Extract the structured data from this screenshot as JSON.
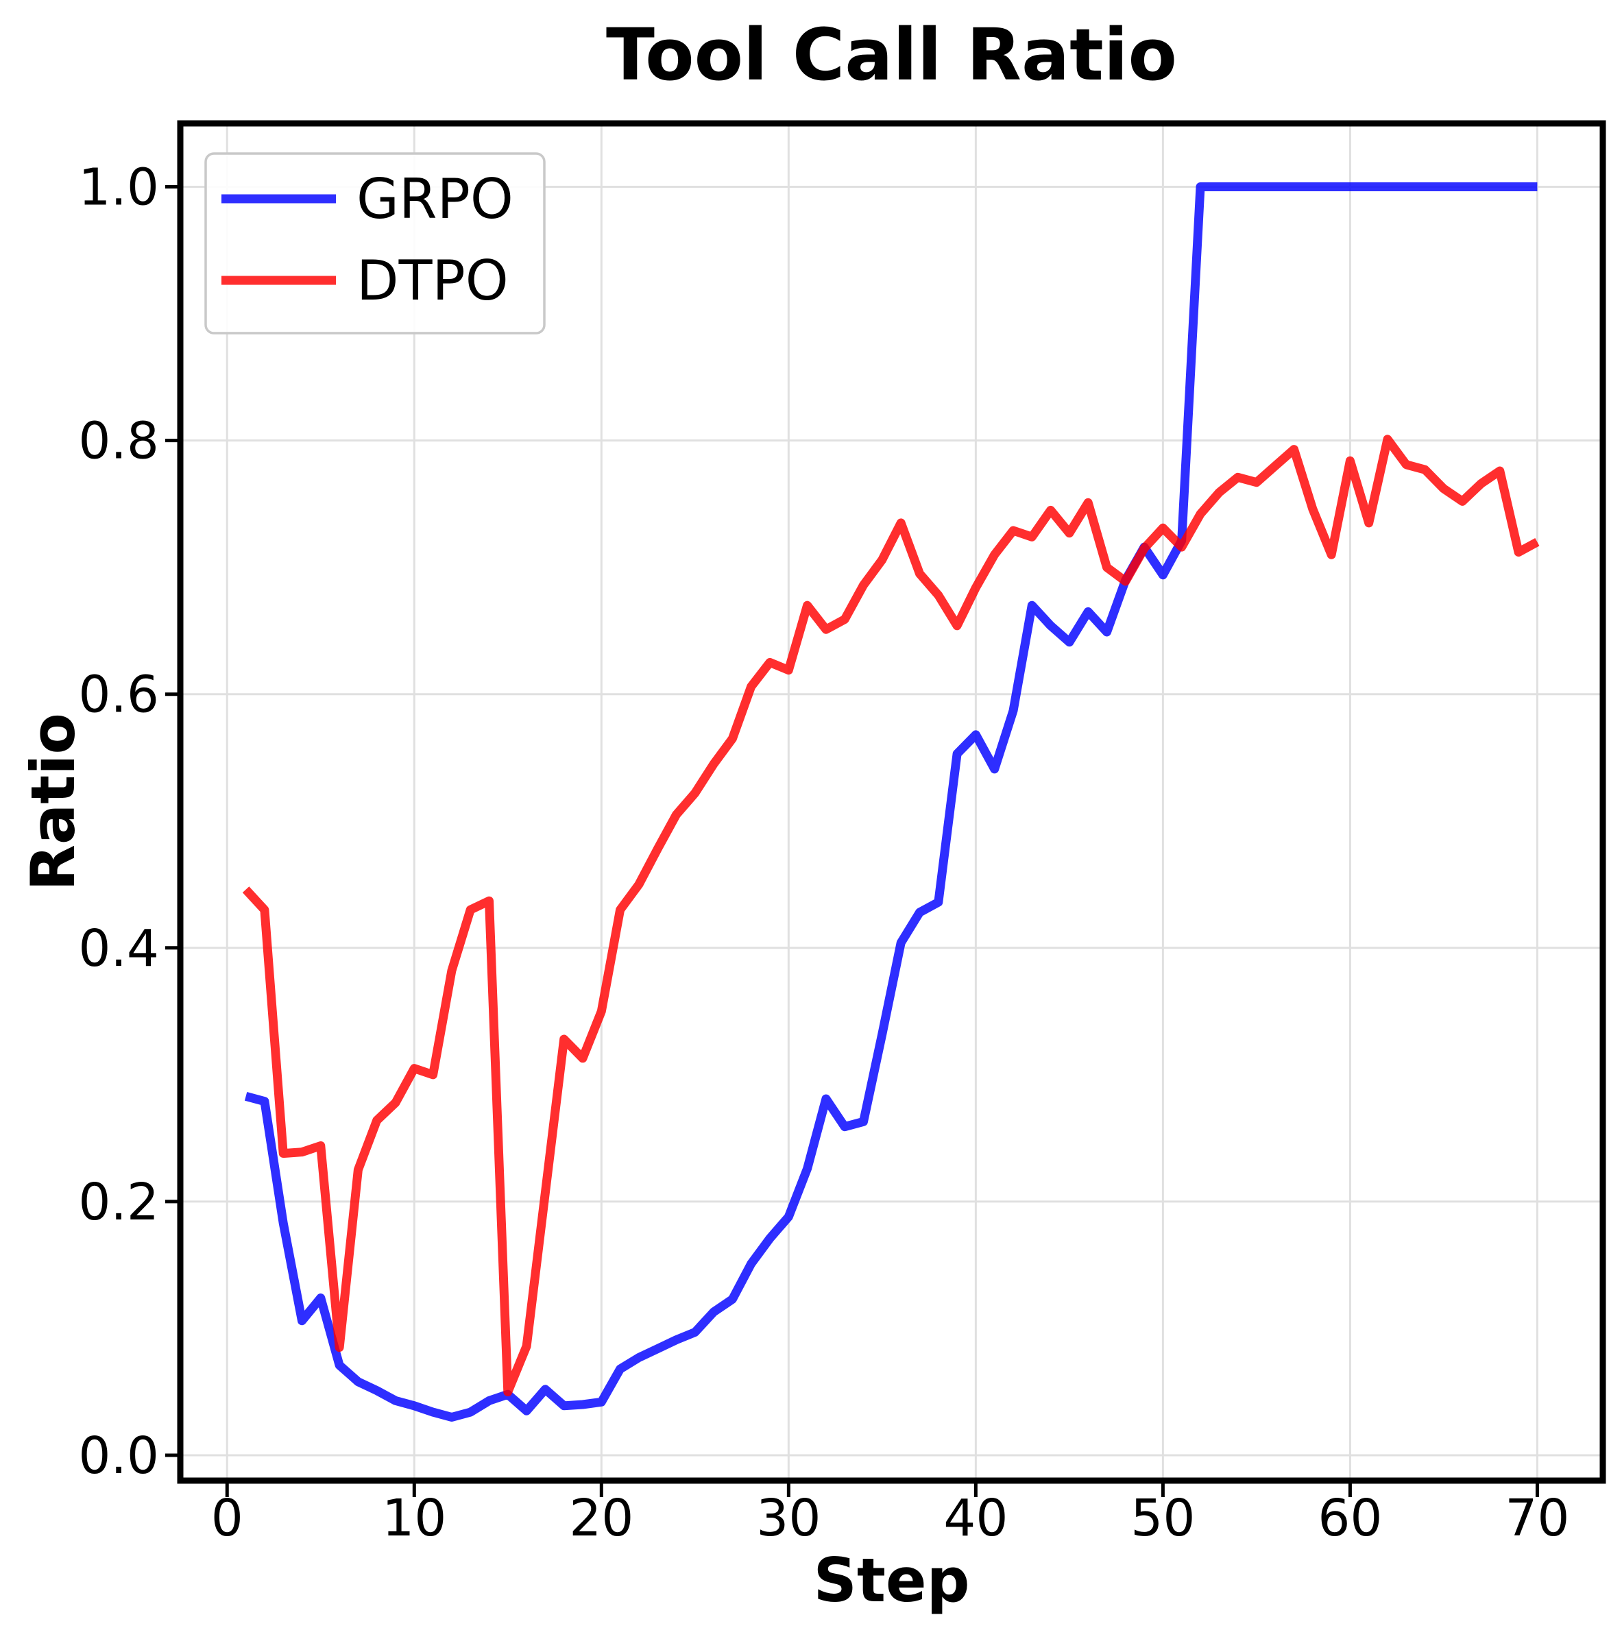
{
  "chart_data": {
    "type": "line",
    "title": "Tool Call Ratio",
    "xlabel": "Step",
    "ylabel": "Ratio",
    "x": [
      1,
      2,
      3,
      4,
      5,
      6,
      7,
      8,
      9,
      10,
      11,
      12,
      13,
      14,
      15,
      16,
      17,
      18,
      19,
      20,
      21,
      22,
      23,
      24,
      25,
      26,
      27,
      28,
      29,
      30,
      31,
      32,
      33,
      34,
      35,
      36,
      37,
      38,
      39,
      40,
      41,
      42,
      43,
      44,
      45,
      46,
      47,
      48,
      49,
      50,
      51,
      52,
      53,
      54,
      55,
      56,
      57,
      58,
      59,
      60,
      61,
      62,
      63,
      64,
      65,
      66,
      67,
      68,
      69,
      70
    ],
    "series": [
      {
        "name": "GRPO",
        "color": "#0000ff",
        "alpha": 0.82,
        "values": [
          0.283,
          0.279,
          0.183,
          0.106,
          0.124,
          0.071,
          0.058,
          0.051,
          0.043,
          0.039,
          0.034,
          0.03,
          0.034,
          0.043,
          0.048,
          0.035,
          0.052,
          0.039,
          0.04,
          0.042,
          0.068,
          0.077,
          0.084,
          0.091,
          0.097,
          0.113,
          0.123,
          0.151,
          0.171,
          0.188,
          0.226,
          0.281,
          0.259,
          0.263,
          0.332,
          0.404,
          0.428,
          0.436,
          0.553,
          0.568,
          0.541,
          0.587,
          0.67,
          0.654,
          0.641,
          0.665,
          0.649,
          0.69,
          0.716,
          0.694,
          0.721,
          1.0,
          1.0,
          1.0,
          1.0,
          1.0,
          1.0,
          1.0,
          1.0,
          1.0,
          1.0,
          1.0,
          1.0,
          1.0,
          1.0,
          1.0,
          1.0,
          1.0,
          1.0,
          1.0
        ]
      },
      {
        "name": "DTPO",
        "color": "#ff0000",
        "alpha": 0.82,
        "values": [
          0.446,
          0.43,
          0.238,
          0.239,
          0.244,
          0.085,
          0.225,
          0.264,
          0.278,
          0.305,
          0.3,
          0.382,
          0.43,
          0.437,
          0.05,
          0.086,
          0.207,
          0.328,
          0.313,
          0.35,
          0.43,
          0.45,
          0.478,
          0.505,
          0.522,
          0.545,
          0.565,
          0.606,
          0.625,
          0.619,
          0.67,
          0.651,
          0.659,
          0.686,
          0.706,
          0.735,
          0.695,
          0.678,
          0.654,
          0.684,
          0.71,
          0.729,
          0.724,
          0.745,
          0.727,
          0.751,
          0.7,
          0.689,
          0.715,
          0.731,
          0.716,
          0.742,
          0.759,
          0.771,
          0.767,
          0.78,
          0.793,
          0.746,
          0.71,
          0.784,
          0.735,
          0.801,
          0.781,
          0.777,
          0.762,
          0.752,
          0.766,
          0.776,
          0.712,
          0.72
        ]
      }
    ],
    "xlim": [
      -2.5,
      73.5
    ],
    "ylim": [
      -0.02,
      1.05
    ],
    "xticks": {
      "values": [
        0,
        10,
        20,
        30,
        40,
        50,
        60,
        70
      ],
      "labels": [
        "0",
        "10",
        "20",
        "30",
        "40",
        "50",
        "60",
        "70"
      ]
    },
    "yticks": {
      "values": [
        0.0,
        0.2,
        0.4,
        0.6,
        0.8,
        1.0
      ],
      "labels": [
        "0.0",
        "0.2",
        "0.4",
        "0.6",
        "0.8",
        "1.0"
      ]
    },
    "grid": true,
    "legend": {
      "position": "upper left",
      "entries": [
        "GRPO",
        "DTPO"
      ]
    }
  },
  "style_colors": {
    "background": "#ffffff",
    "spine": "#000000",
    "grid": "#e0e0e0",
    "tick": "#000000",
    "legend_border": "#c9c9c9",
    "legend_fill": "#ffffff"
  }
}
